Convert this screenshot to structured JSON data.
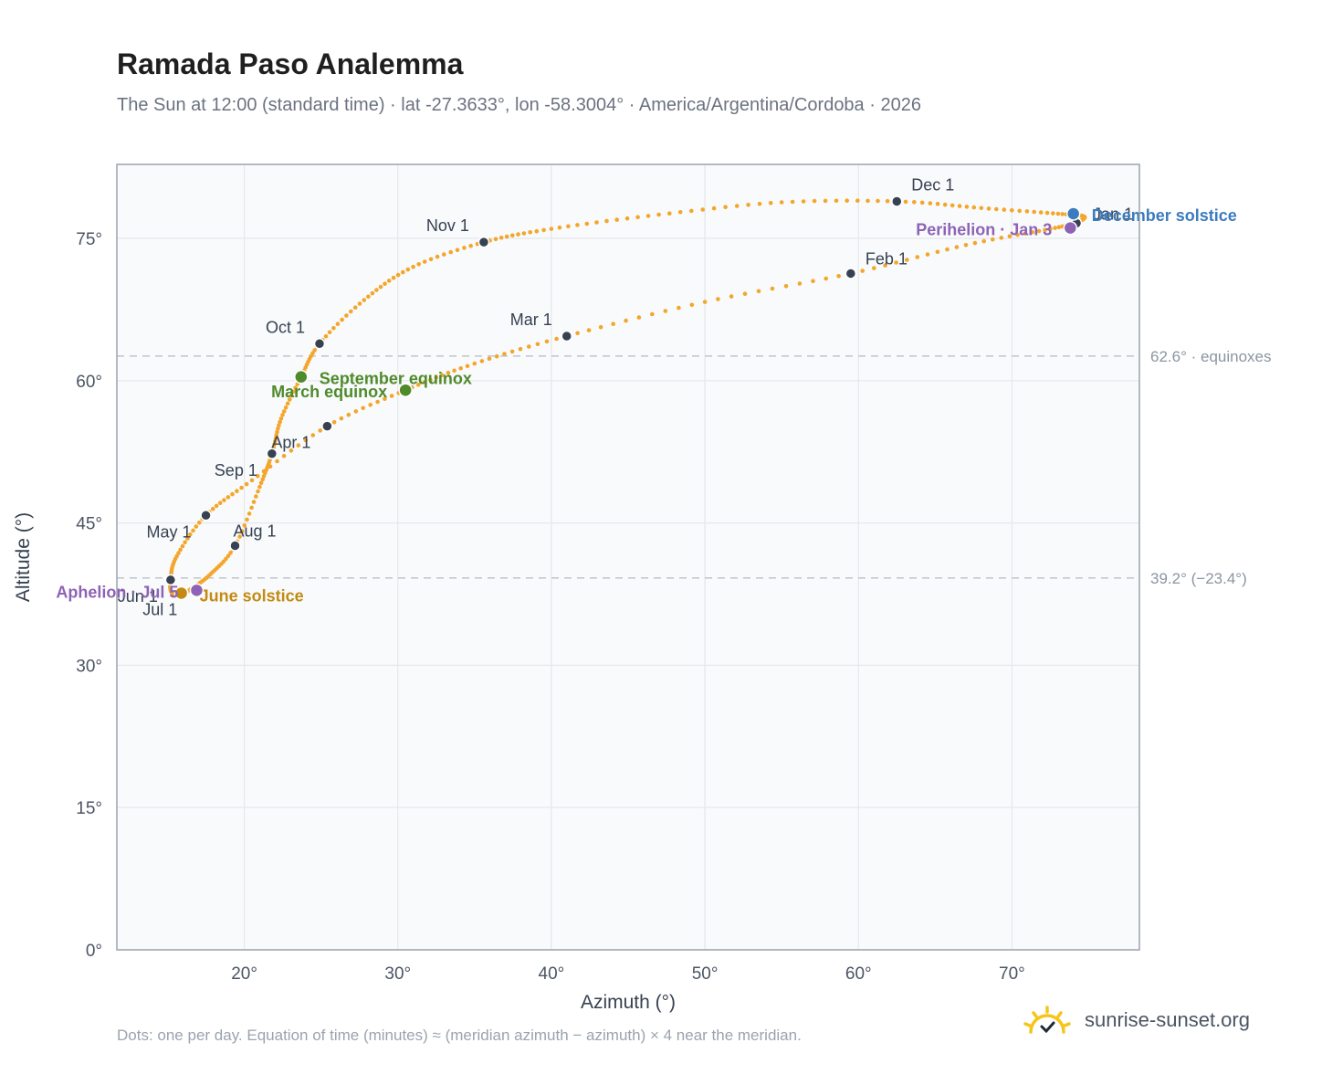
{
  "chart_data": {
    "type": "scatter",
    "title": "Ramada Paso Analemma",
    "subtitle": "The Sun at 12:00 (standard time) · lat -27.3633°, lon -58.3004° · America/Argentina/Cordoba · 2026",
    "xlabel": "Azimuth (°)",
    "ylabel": "Altitude (°)",
    "xlim": [
      11.7,
      78.3
    ],
    "ylim": [
      0,
      82.8
    ],
    "xticks": [
      20,
      30,
      40,
      50,
      60,
      70
    ],
    "xtick_labels": [
      "20°",
      "30°",
      "40°",
      "50°",
      "60°",
      "70°"
    ],
    "yticks": [
      0,
      15,
      30,
      45,
      60,
      75
    ],
    "ytick_labels": [
      "0°",
      "15°",
      "30°",
      "45°",
      "60°",
      "75°"
    ],
    "grid": true,
    "reference_lines": [
      {
        "y": 62.6,
        "label": "62.6° · equinoxes"
      },
      {
        "y": 39.2,
        "label": "39.2° (−23.4°)"
      }
    ],
    "month_markers": [
      {
        "label": "Jan 1",
        "x": 74.2,
        "y": 76.6
      },
      {
        "label": "Feb 1",
        "x": 59.5,
        "y": 71.3
      },
      {
        "label": "Mar 1",
        "x": 41.0,
        "y": 64.7
      },
      {
        "label": "Apr 1",
        "x": 25.4,
        "y": 55.2
      },
      {
        "label": "May 1",
        "x": 17.5,
        "y": 45.8
      },
      {
        "label": "Jun 1",
        "x": 15.2,
        "y": 39.0
      },
      {
        "label": "Jul 1",
        "x": 16.0,
        "y": 37.6
      },
      {
        "label": "Aug 1",
        "x": 19.4,
        "y": 42.6
      },
      {
        "label": "Sep 1",
        "x": 21.8,
        "y": 52.3
      },
      {
        "label": "Oct 1",
        "x": 24.9,
        "y": 63.9
      },
      {
        "label": "Nov 1",
        "x": 35.6,
        "y": 74.6
      },
      {
        "label": "Dec 1",
        "x": 62.5,
        "y": 78.9
      }
    ],
    "events": [
      {
        "label": "December solstice",
        "x": 74.0,
        "y": 77.6,
        "color": "#3b7bbf"
      },
      {
        "label": "Perihelion · Jan 3",
        "x": 73.8,
        "y": 76.1,
        "color": "#8e63b5"
      },
      {
        "label": "March equinox",
        "x": 30.5,
        "y": 59.0,
        "color": "#4f8a2b"
      },
      {
        "label": "September equinox",
        "x": 23.7,
        "y": 60.4,
        "color": "#4f8a2b"
      },
      {
        "label": "June solstice",
        "x": 15.9,
        "y": 37.6,
        "color": "#c38b12"
      },
      {
        "label": "Aphelion · Jul 5",
        "x": 16.9,
        "y": 37.9,
        "color": "#8e63b5"
      }
    ],
    "series": [
      {
        "points_per_day": 1,
        "color": "#f4a62a",
        "key_points": [
          [
            74.2,
            76.6
          ],
          [
            74.7,
            77.3
          ],
          [
            73.0,
            77.6
          ],
          [
            68.0,
            78.2
          ],
          [
            62.5,
            78.9
          ],
          [
            55.0,
            78.8
          ],
          [
            47.0,
            77.5
          ],
          [
            40.0,
            76.0
          ],
          [
            35.6,
            74.6
          ],
          [
            31.0,
            72.0
          ],
          [
            27.8,
            68.5
          ],
          [
            24.9,
            63.9
          ],
          [
            23.7,
            60.4
          ],
          [
            22.4,
            56.0
          ],
          [
            21.8,
            52.3
          ],
          [
            21.0,
            48.8
          ],
          [
            19.4,
            42.6
          ],
          [
            17.8,
            39.6
          ],
          [
            16.5,
            38.0
          ],
          [
            16.0,
            37.6
          ],
          [
            15.3,
            37.6
          ],
          [
            15.2,
            39.0
          ],
          [
            15.6,
            41.5
          ],
          [
            17.5,
            45.8
          ],
          [
            20.5,
            49.5
          ],
          [
            25.4,
            55.2
          ],
          [
            30.5,
            59.0
          ],
          [
            35.0,
            61.8
          ],
          [
            41.0,
            64.7
          ],
          [
            50.0,
            68.3
          ],
          [
            59.5,
            71.3
          ],
          [
            67.0,
            74.3
          ],
          [
            72.5,
            76.0
          ],
          [
            74.2,
            76.6
          ]
        ]
      }
    ],
    "equinox_band": "equinoxes"
  },
  "footer": {
    "note": "Dots: one per day. Equation of time (minutes) ≈ (meridian azimuth − azimuth) × 4 near the meridian.",
    "brand": "sunrise-sunset.org"
  },
  "colors": {
    "curve": "#f4a62a",
    "marker": "#374151",
    "plot_bg": "#f8fafc",
    "grid": "#e5e7eb",
    "frame": "#9ca3af"
  }
}
